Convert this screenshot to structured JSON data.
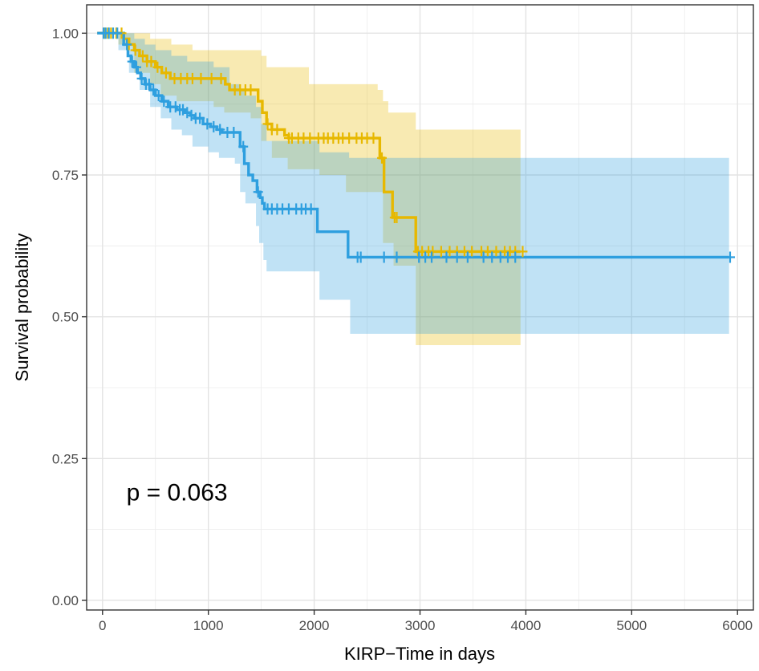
{
  "chart_data": {
    "type": "line",
    "subtype": "kaplan-meier survival curve",
    "xlabel": "KIRP−Time in days",
    "ylabel": "Survival probability",
    "xlim": [
      -150,
      6150
    ],
    "ylim": [
      -0.017,
      1.05
    ],
    "x_ticks": [
      0,
      1000,
      2000,
      3000,
      4000,
      5000,
      6000
    ],
    "x_tick_labels": [
      "0",
      "1000",
      "2000",
      "3000",
      "4000",
      "5000",
      "6000"
    ],
    "y_ticks": [
      0,
      0.25,
      0.5,
      0.75,
      1
    ],
    "y_tick_labels": [
      "0.00",
      "0.25",
      "0.50",
      "0.75",
      "1.00"
    ],
    "grid": true,
    "annotation": {
      "text": "p = 0.063",
      "x": 120,
      "y": 0.19
    },
    "series": [
      {
        "color": "#E7B800",
        "step": [
          [
            -50,
            1.0
          ],
          [
            170,
            1.0
          ],
          [
            200,
            0.99
          ],
          [
            250,
            0.98
          ],
          [
            300,
            0.97
          ],
          [
            350,
            0.96
          ],
          [
            420,
            0.95
          ],
          [
            500,
            0.94
          ],
          [
            560,
            0.93
          ],
          [
            640,
            0.92
          ],
          [
            1100,
            0.92
          ],
          [
            1160,
            0.91
          ],
          [
            1200,
            0.9
          ],
          [
            1430,
            0.9
          ],
          [
            1470,
            0.88
          ],
          [
            1510,
            0.86
          ],
          [
            1550,
            0.84
          ],
          [
            1600,
            0.83
          ],
          [
            1720,
            0.82
          ],
          [
            1760,
            0.815
          ],
          [
            2600,
            0.815
          ],
          [
            2620,
            0.78
          ],
          [
            2660,
            0.72
          ],
          [
            2740,
            0.675
          ],
          [
            2940,
            0.675
          ],
          [
            2960,
            0.615
          ],
          [
            3950,
            0.615
          ]
        ],
        "ci_lower": [
          [
            -50,
            1.0
          ],
          [
            150,
            0.98
          ],
          [
            300,
            0.93
          ],
          [
            450,
            0.91
          ],
          [
            550,
            0.89
          ],
          [
            700,
            0.88
          ],
          [
            1050,
            0.87
          ],
          [
            1150,
            0.86
          ],
          [
            1400,
            0.85
          ],
          [
            1500,
            0.81
          ],
          [
            1600,
            0.78
          ],
          [
            1750,
            0.76
          ],
          [
            2050,
            0.75
          ],
          [
            2300,
            0.72
          ],
          [
            2600,
            0.72
          ],
          [
            2650,
            0.63
          ],
          [
            2750,
            0.59
          ],
          [
            2950,
            0.59
          ],
          [
            2960,
            0.45
          ],
          [
            3950,
            0.45
          ]
        ],
        "ci_upper": [
          [
            -50,
            1.0
          ],
          [
            3950,
            1.0
          ]
        ],
        "ci_upper_steps": [
          [
            -50,
            1.0
          ],
          [
            400,
            1.0
          ],
          [
            450,
            0.99
          ],
          [
            650,
            0.98
          ],
          [
            850,
            0.97
          ],
          [
            1500,
            0.96
          ],
          [
            1550,
            0.94
          ],
          [
            1950,
            0.91
          ],
          [
            2600,
            0.9
          ],
          [
            2650,
            0.88
          ],
          [
            2700,
            0.86
          ],
          [
            2800,
            0.86
          ],
          [
            2950,
            0.86
          ],
          [
            2960,
            0.83
          ],
          [
            3950,
            0.83
          ]
        ],
        "censor_x": [
          20,
          50,
          80,
          130,
          180,
          250,
          310,
          380,
          420,
          460,
          520,
          600,
          680,
          740,
          800,
          850,
          930,
          1030,
          1120,
          1250,
          1300,
          1350,
          1400,
          1560,
          1600,
          1650,
          1760,
          1790,
          1850,
          1900,
          1960,
          2040,
          2090,
          2130,
          2180,
          2230,
          2270,
          2330,
          2400,
          2450,
          2500,
          2560,
          2640,
          2760,
          2780,
          2980,
          3020,
          3080,
          3120,
          3200,
          3280,
          3350,
          3420,
          3490,
          3580,
          3640,
          3720,
          3800,
          3850,
          3900,
          3970
        ]
      },
      {
        "color": "#2E9FDF",
        "step": [
          [
            -50,
            1.0
          ],
          [
            170,
            1.0
          ],
          [
            200,
            0.98
          ],
          [
            240,
            0.96
          ],
          [
            270,
            0.95
          ],
          [
            300,
            0.94
          ],
          [
            330,
            0.93
          ],
          [
            360,
            0.92
          ],
          [
            400,
            0.91
          ],
          [
            450,
            0.9
          ],
          [
            500,
            0.89
          ],
          [
            560,
            0.88
          ],
          [
            620,
            0.87
          ],
          [
            700,
            0.865
          ],
          [
            780,
            0.86
          ],
          [
            830,
            0.855
          ],
          [
            870,
            0.85
          ],
          [
            950,
            0.84
          ],
          [
            1020,
            0.835
          ],
          [
            1080,
            0.83
          ],
          [
            1130,
            0.825
          ],
          [
            1290,
            0.825
          ],
          [
            1300,
            0.8
          ],
          [
            1340,
            0.77
          ],
          [
            1380,
            0.75
          ],
          [
            1420,
            0.74
          ],
          [
            1460,
            0.72
          ],
          [
            1490,
            0.71
          ],
          [
            1510,
            0.7
          ],
          [
            1530,
            0.69
          ],
          [
            2020,
            0.69
          ],
          [
            2030,
            0.65
          ],
          [
            2300,
            0.65
          ],
          [
            2320,
            0.605
          ],
          [
            5920,
            0.605
          ]
        ],
        "ci_lower": [
          [
            -50,
            1.0
          ],
          [
            150,
            0.97
          ],
          [
            250,
            0.93
          ],
          [
            350,
            0.9
          ],
          [
            450,
            0.87
          ],
          [
            550,
            0.85
          ],
          [
            650,
            0.83
          ],
          [
            750,
            0.82
          ],
          [
            850,
            0.8
          ],
          [
            1000,
            0.79
          ],
          [
            1100,
            0.78
          ],
          [
            1250,
            0.77
          ],
          [
            1300,
            0.72
          ],
          [
            1350,
            0.7
          ],
          [
            1450,
            0.66
          ],
          [
            1480,
            0.63
          ],
          [
            1520,
            0.6
          ],
          [
            1550,
            0.58
          ],
          [
            2000,
            0.58
          ],
          [
            2050,
            0.53
          ],
          [
            2330,
            0.53
          ],
          [
            2340,
            0.47
          ],
          [
            5920,
            0.47
          ]
        ],
        "ci_upper_steps": [
          [
            -50,
            1.0
          ],
          [
            300,
            0.99
          ],
          [
            400,
            0.98
          ],
          [
            500,
            0.97
          ],
          [
            650,
            0.96
          ],
          [
            800,
            0.95
          ],
          [
            950,
            0.95
          ],
          [
            1050,
            0.94
          ],
          [
            1200,
            0.91
          ],
          [
            1300,
            0.9
          ],
          [
            1350,
            0.89
          ],
          [
            1450,
            0.87
          ],
          [
            1500,
            0.84
          ],
          [
            1550,
            0.81
          ],
          [
            2000,
            0.81
          ],
          [
            2050,
            0.79
          ],
          [
            2300,
            0.79
          ],
          [
            2330,
            0.78
          ],
          [
            5920,
            0.78
          ]
        ],
        "censor_x": [
          10,
          30,
          60,
          100,
          140,
          230,
          280,
          320,
          370,
          410,
          440,
          480,
          530,
          580,
          640,
          690,
          730,
          760,
          800,
          840,
          880,
          920,
          990,
          1050,
          1110,
          1180,
          1240,
          1330,
          1470,
          1560,
          1600,
          1650,
          1700,
          1760,
          1830,
          1880,
          1920,
          1970,
          2410,
          2440,
          2660,
          2780,
          2990,
          3050,
          3110,
          3250,
          3350,
          3450,
          3600,
          3680,
          3760,
          3830,
          3900,
          5930
        ]
      }
    ]
  }
}
